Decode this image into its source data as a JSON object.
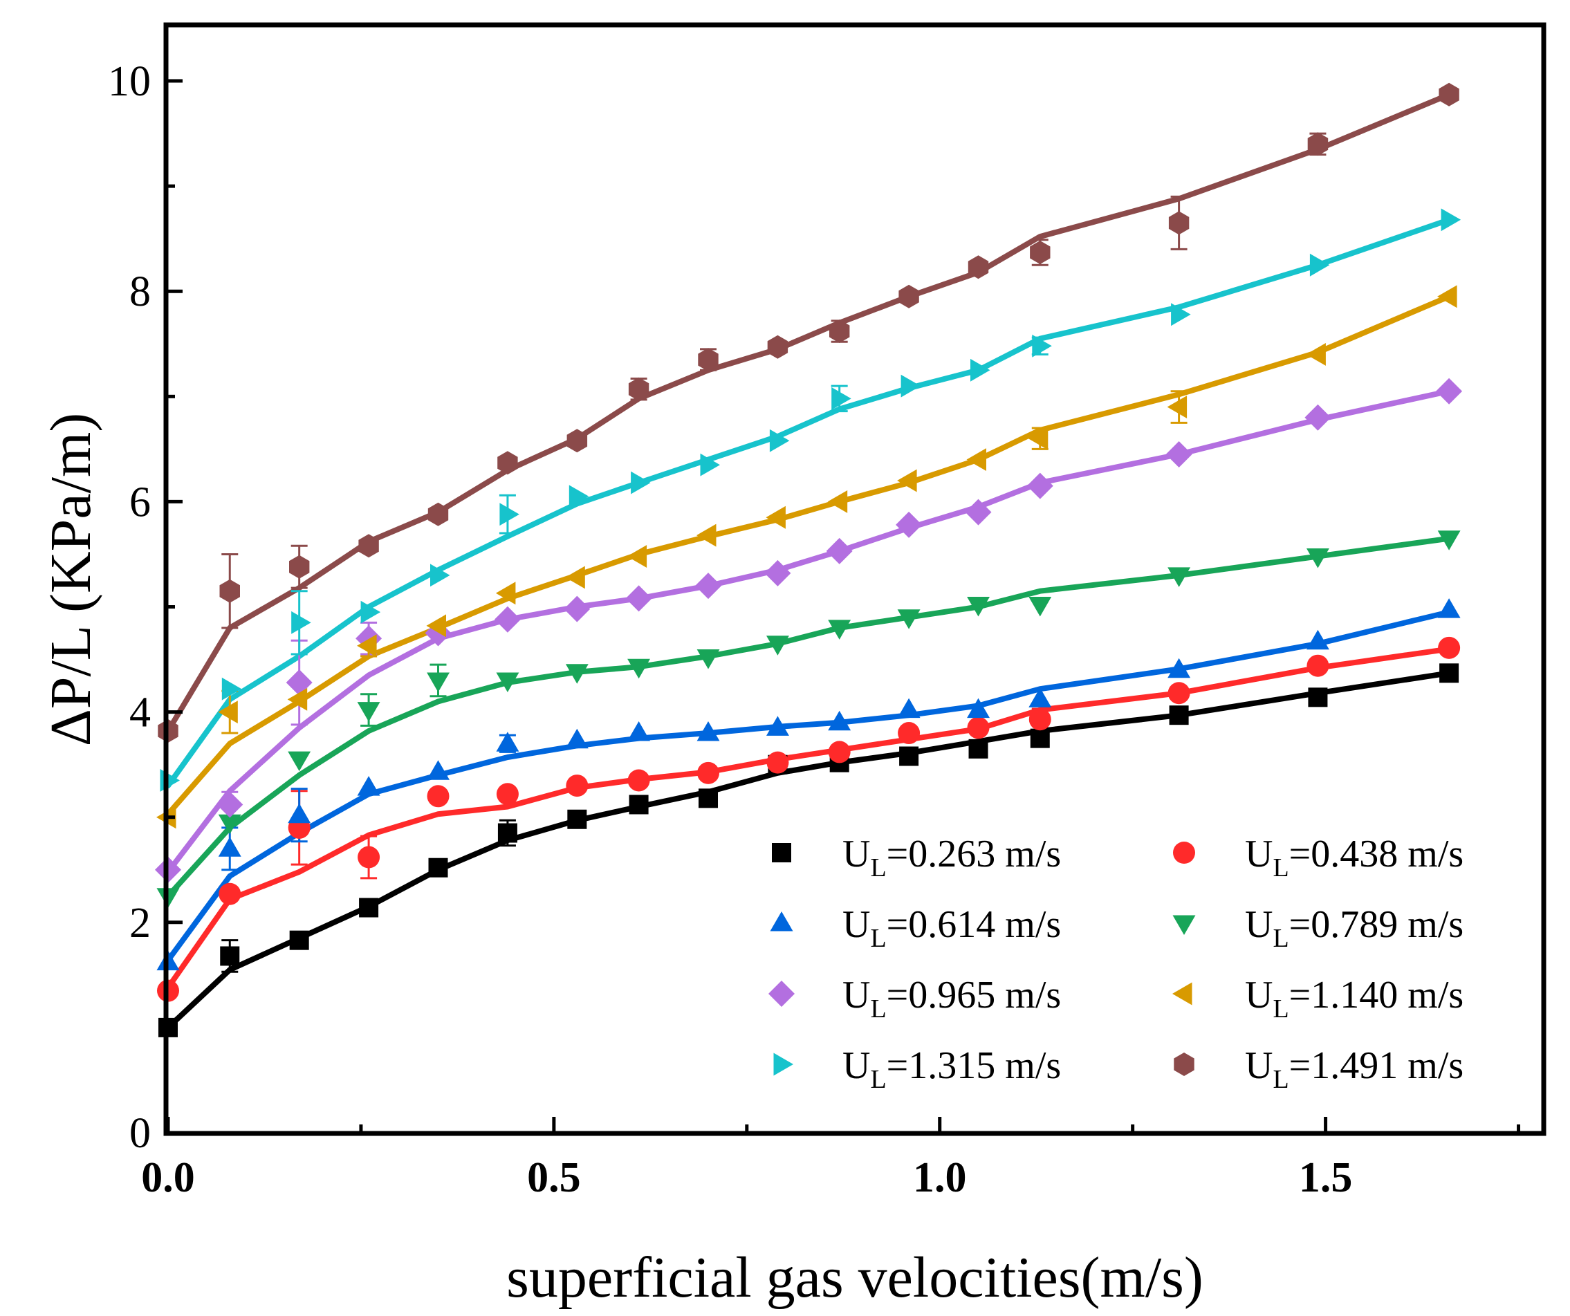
{
  "chart_data": {
    "type": "line",
    "xlabel": "superficial gas velocities(m/s)",
    "ylabel": "ΔP/L (KPa/m)",
    "xlim": [
      0.0,
      1.78
    ],
    "ylim": [
      0,
      10.5
    ],
    "x_ticks": [
      0.0,
      0.5,
      1.0,
      1.5
    ],
    "x_tick_labels": [
      "0.0",
      "0.5",
      "1.0",
      "1.5"
    ],
    "y_ticks": [
      0,
      2,
      4,
      6,
      8,
      10
    ],
    "y_tick_labels": [
      "0",
      "2",
      "4",
      "6",
      "8",
      "10"
    ],
    "grid": false,
    "legend_position": "bottom-right",
    "x": [
      0.0,
      0.08,
      0.17,
      0.26,
      0.35,
      0.44,
      0.53,
      0.61,
      0.7,
      0.79,
      0.87,
      0.96,
      1.05,
      1.13,
      1.31,
      1.49,
      1.66
    ],
    "series": [
      {
        "name": "0.263 m/s",
        "label_sub": "L",
        "label_prefix": "U",
        "marker": "square",
        "color": "#000000",
        "points": [
          1.0,
          1.68,
          1.83,
          2.14,
          2.52,
          2.85,
          2.98,
          3.12,
          3.18,
          3.5,
          3.52,
          3.58,
          3.65,
          3.75,
          3.97,
          4.14,
          4.37
        ],
        "errors": [
          0.05,
          0.15,
          0.05,
          0.08,
          0.05,
          0.12,
          0.05,
          0.05,
          0.08,
          0.05,
          0.05,
          0.05,
          0.05,
          0.05,
          0.05,
          0.05,
          0.05
        ],
        "fit": [
          1.0,
          1.55,
          1.85,
          2.15,
          2.5,
          2.78,
          2.97,
          3.1,
          3.24,
          3.42,
          3.52,
          3.61,
          3.72,
          3.82,
          3.97,
          4.18,
          4.37
        ]
      },
      {
        "name": "0.438 m/s",
        "label_sub": "L",
        "label_prefix": "U",
        "marker": "circle",
        "color": "#ff2a2a",
        "points": [
          1.35,
          2.27,
          2.9,
          2.62,
          3.2,
          3.22,
          3.3,
          3.35,
          3.42,
          3.52,
          3.62,
          3.8,
          3.85,
          3.93,
          4.18,
          4.44,
          4.61
        ],
        "errors": [
          0.05,
          0.05,
          0.35,
          0.2,
          0.05,
          0.05,
          0.05,
          0.05,
          0.05,
          0.05,
          0.05,
          0.05,
          0.05,
          0.1,
          0.05,
          0.05,
          0.05
        ],
        "fit": [
          1.38,
          2.22,
          2.48,
          2.83,
          3.03,
          3.1,
          3.28,
          3.36,
          3.43,
          3.55,
          3.64,
          3.74,
          3.84,
          4.02,
          4.18,
          4.42,
          4.6
        ]
      },
      {
        "name": "0.614 m/s",
        "label_sub": "L",
        "label_prefix": "U",
        "marker": "triangle-up",
        "color": "#0066dd",
        "points": [
          1.62,
          2.7,
          3.02,
          3.28,
          3.43,
          3.7,
          3.73,
          3.8,
          3.8,
          3.85,
          3.9,
          4.02,
          4.02,
          4.12,
          4.4,
          4.67,
          4.97
        ],
        "errors": [
          0.05,
          0.2,
          0.25,
          0.05,
          0.05,
          0.08,
          0.05,
          0.05,
          0.05,
          0.05,
          0.05,
          0.05,
          0.05,
          0.05,
          0.05,
          0.05,
          0.05
        ],
        "fit": [
          1.64,
          2.44,
          2.85,
          3.22,
          3.4,
          3.57,
          3.68,
          3.75,
          3.8,
          3.86,
          3.9,
          3.97,
          4.06,
          4.22,
          4.41,
          4.65,
          4.95
        ]
      },
      {
        "name": "0.789 m/s",
        "label_sub": "L",
        "label_prefix": "U",
        "marker": "triangle-down",
        "color": "#18a558",
        "points": [
          2.25,
          2.95,
          3.55,
          4.02,
          4.3,
          4.3,
          4.38,
          4.43,
          4.52,
          4.65,
          4.8,
          4.9,
          5.02,
          5.02,
          5.3,
          5.48,
          5.65
        ],
        "errors": [
          0.05,
          0.05,
          0.05,
          0.15,
          0.15,
          0.05,
          0.05,
          0.05,
          0.05,
          0.05,
          0.05,
          0.05,
          0.05,
          0.05,
          0.05,
          0.05,
          0.05
        ],
        "fit": [
          2.25,
          2.9,
          3.4,
          3.82,
          4.1,
          4.28,
          4.38,
          4.43,
          4.53,
          4.65,
          4.8,
          4.9,
          5.0,
          5.15,
          5.3,
          5.48,
          5.65
        ]
      },
      {
        "name": "0.965 m/s",
        "label_sub": "L",
        "label_prefix": "U",
        "marker": "diamond",
        "color": "#b36fe0",
        "points": [
          2.5,
          3.12,
          4.28,
          4.7,
          4.75,
          4.88,
          4.98,
          5.08,
          5.2,
          5.32,
          5.53,
          5.78,
          5.9,
          6.15,
          6.45,
          6.8,
          7.05
        ],
        "errors": [
          0.05,
          0.12,
          0.4,
          0.15,
          0.05,
          0.05,
          0.05,
          0.05,
          0.05,
          0.05,
          0.05,
          0.05,
          0.05,
          0.05,
          0.05,
          0.05,
          0.05
        ],
        "fit": [
          2.48,
          3.25,
          3.85,
          4.35,
          4.7,
          4.88,
          5.0,
          5.08,
          5.2,
          5.35,
          5.53,
          5.75,
          5.95,
          6.18,
          6.45,
          6.78,
          7.05
        ]
      },
      {
        "name": "1.140 m/s",
        "label_sub": "L",
        "label_prefix": "U",
        "marker": "triangle-left",
        "color": "#d89a00",
        "points": [
          3.0,
          4.0,
          4.12,
          4.63,
          4.82,
          5.13,
          5.28,
          5.48,
          5.68,
          5.85,
          6.0,
          6.2,
          6.4,
          6.6,
          6.9,
          7.4,
          7.95
        ],
        "errors": [
          0.05,
          0.2,
          0.05,
          0.1,
          0.05,
          0.05,
          0.05,
          0.05,
          0.05,
          0.05,
          0.05,
          0.05,
          0.05,
          0.1,
          0.15,
          0.05,
          0.05
        ],
        "fit": [
          3.03,
          3.7,
          4.1,
          4.53,
          4.8,
          5.08,
          5.3,
          5.5,
          5.67,
          5.83,
          6.0,
          6.18,
          6.4,
          6.68,
          7.02,
          7.42,
          7.95
        ]
      },
      {
        "name": "1.315 m/s",
        "label_sub": "L",
        "label_prefix": "U",
        "marker": "triangle-right",
        "color": "#17c3cc",
        "points": [
          3.35,
          4.22,
          4.85,
          4.95,
          5.3,
          5.88,
          6.05,
          6.18,
          6.35,
          6.58,
          6.98,
          7.1,
          7.25,
          7.48,
          7.78,
          8.25,
          8.68
        ],
        "errors": [
          0.05,
          0.05,
          0.3,
          0.05,
          0.05,
          0.18,
          0.05,
          0.05,
          0.05,
          0.05,
          0.12,
          0.05,
          0.05,
          0.08,
          0.05,
          0.05,
          0.05
        ],
        "fit": [
          3.3,
          4.12,
          4.53,
          5.0,
          5.35,
          5.67,
          5.98,
          6.18,
          6.4,
          6.62,
          6.88,
          7.08,
          7.25,
          7.55,
          7.85,
          8.25,
          8.68
        ]
      },
      {
        "name": "1.491 m/s",
        "label_sub": "L",
        "label_prefix": "U",
        "marker": "hexagon",
        "color": "#8b4a4a",
        "points": [
          3.82,
          5.15,
          5.38,
          5.58,
          5.88,
          6.37,
          6.58,
          7.07,
          7.35,
          7.47,
          7.62,
          7.95,
          8.23,
          8.37,
          8.65,
          9.4,
          9.87
        ],
        "errors": [
          0.05,
          0.35,
          0.2,
          0.05,
          0.05,
          0.05,
          0.05,
          0.1,
          0.1,
          0.05,
          0.1,
          0.05,
          0.05,
          0.12,
          0.25,
          0.1,
          0.05
        ],
        "fit": [
          3.82,
          4.8,
          5.18,
          5.62,
          5.9,
          6.3,
          6.6,
          6.98,
          7.25,
          7.45,
          7.7,
          7.95,
          8.18,
          8.52,
          8.88,
          9.35,
          9.87
        ]
      }
    ]
  }
}
